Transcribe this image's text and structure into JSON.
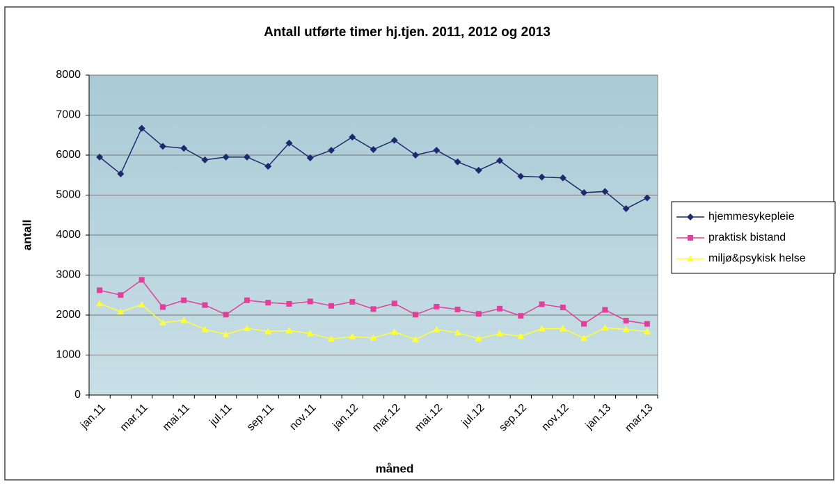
{
  "chart_data": {
    "type": "line",
    "title": "Antall utførte timer hj.tjen. 2011, 2012 og 2013",
    "x_label": "måned",
    "y_label": "antall",
    "categories": [
      "jan.11",
      null,
      "mar.11",
      null,
      "mai.11",
      null,
      "jul.11",
      null,
      "sep.11",
      null,
      "nov.11",
      null,
      "jan.12",
      null,
      "mar.12",
      null,
      "mai.12",
      null,
      "jul.12",
      null,
      "sep.12",
      null,
      "nov.12",
      null,
      "jan.13",
      null,
      "mar.13"
    ],
    "series": [
      {
        "name": "hjemmesykepleie",
        "color": "#1f2a6e",
        "marker": "diamond",
        "values": [
          5950,
          5530,
          6670,
          6220,
          6170,
          5880,
          5950,
          5950,
          5720,
          6300,
          5930,
          6120,
          6450,
          6140,
          6370,
          6000,
          6120,
          5830,
          5620,
          5860,
          5470,
          5450,
          5430,
          5060,
          5090,
          4660,
          4930
        ]
      },
      {
        "name": "praktisk bistand",
        "color": "#e0409a",
        "marker": "square",
        "values": [
          2620,
          2500,
          2880,
          2200,
          2370,
          2250,
          2010,
          2370,
          2310,
          2280,
          2340,
          2230,
          2330,
          2150,
          2290,
          2010,
          2210,
          2140,
          2030,
          2160,
          1980,
          2270,
          2190,
          1780,
          2130,
          1860,
          1780
        ]
      },
      {
        "name": "miljø&psykisk helse",
        "color": "#ffff33",
        "marker": "triangle",
        "values": [
          2290,
          2080,
          2260,
          1810,
          1870,
          1640,
          1520,
          1670,
          1590,
          1610,
          1540,
          1400,
          1460,
          1430,
          1580,
          1390,
          1640,
          1560,
          1410,
          1540,
          1470,
          1660,
          1660,
          1420,
          1680,
          1640,
          1590
        ]
      }
    ],
    "ylim": [
      0,
      8000
    ],
    "yticks": [
      0,
      1000,
      2000,
      3000,
      4000,
      5000,
      6000,
      7000,
      8000
    ],
    "grid": true,
    "legend": "right"
  }
}
